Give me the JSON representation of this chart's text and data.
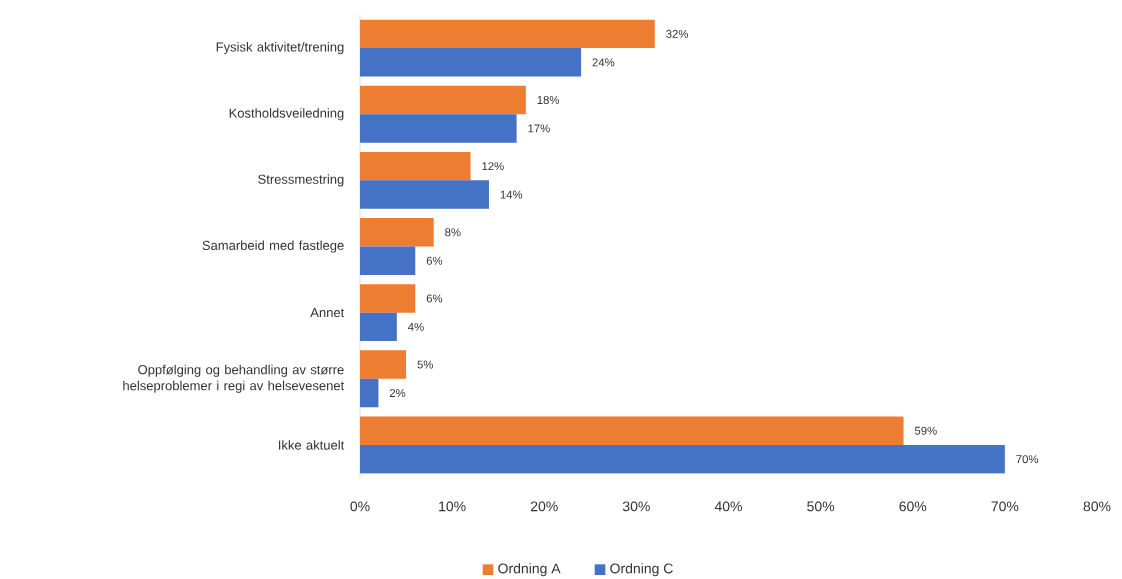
{
  "chart_data": {
    "type": "bar",
    "orientation": "horizontal",
    "categories": [
      "Fysisk aktivitet/trening",
      "Kostholdsveiledning",
      "Stressmestring",
      "Samarbeid med fastlege",
      "Annet",
      "Oppfølging og behandling av større helseproblemer i regi av helsevesenet",
      "Ikke aktuelt"
    ],
    "series": [
      {
        "name": "Ordning A",
        "color": "#ed7d31",
        "values": [
          32,
          18,
          12,
          8,
          6,
          5,
          59
        ],
        "value_labels": [
          "32%",
          "18%",
          "12%",
          "8%",
          "6%",
          "5%",
          "59%"
        ]
      },
      {
        "name": "Ordning C",
        "color": "#4472c4",
        "values": [
          24,
          17,
          14,
          6,
          4,
          2,
          70
        ],
        "value_labels": [
          "24%",
          "17%",
          "14%",
          "6%",
          "4%",
          "2%",
          "70%"
        ]
      }
    ],
    "xlim": [
      0,
      80
    ],
    "xticks": [
      {
        "value": 0,
        "label": "0%"
      },
      {
        "value": 10,
        "label": "10%"
      },
      {
        "value": 20,
        "label": "20%"
      },
      {
        "value": 30,
        "label": "30%"
      },
      {
        "value": 40,
        "label": "40%"
      },
      {
        "value": 50,
        "label": "50%"
      },
      {
        "value": 60,
        "label": "60%"
      },
      {
        "value": 70,
        "label": "70%"
      },
      {
        "value": 80,
        "label": "80%"
      }
    ],
    "grid": false,
    "legend": "bottom"
  }
}
